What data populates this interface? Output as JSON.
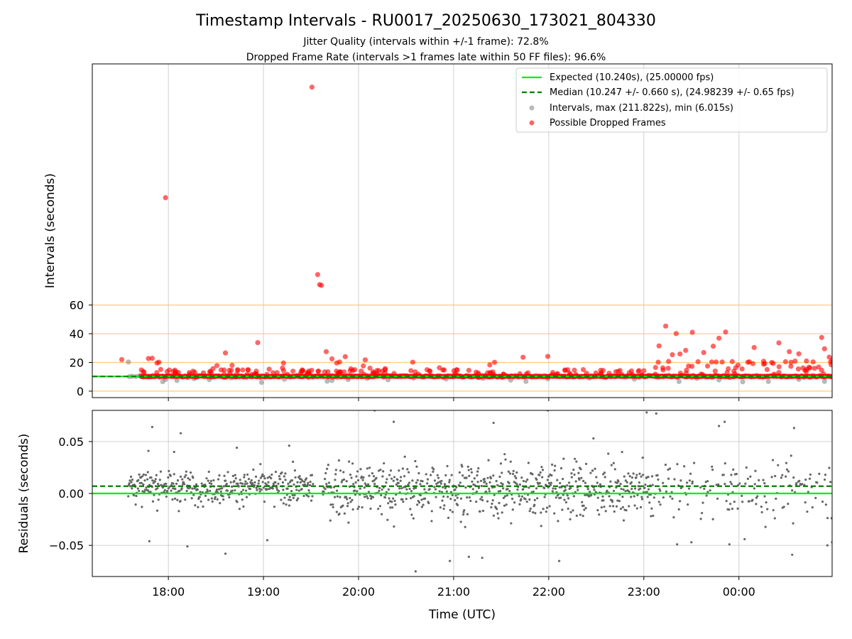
{
  "chart_data": [
    {
      "type": "scatter",
      "title": "Timestamp Intervals - RU0017_20250630_173021_804330",
      "subtitle_lines": [
        "Jitter Quality (intervals within +/-1 frame): 72.8%",
        "Dropped Frame Rate (intervals >1 frames late within 50 FF files): 96.6%"
      ],
      "xlabel": "",
      "ylabel": "Intervals (seconds)",
      "x_axis_hours": [
        17.2,
        24.98
      ],
      "ylim": [
        -4.5,
        228
      ],
      "yticks": [
        0,
        20,
        40,
        60
      ],
      "reference_lines": [
        0,
        20,
        40,
        60
      ],
      "grid": "vertical",
      "legend_position": "top-right",
      "legend": [
        {
          "label": "Expected (10.240s), (25.00000 fps)",
          "style": "solid-line",
          "color": "#00ee00"
        },
        {
          "label": "Median (10.247 +/- 0.660 s), (24.98239 +/- 0.65 fps)",
          "style": "dashed-line",
          "color": "#007f00"
        },
        {
          "label": "Intervals, max (211.822s), min (6.015s)",
          "style": "marker",
          "color": "#808080"
        },
        {
          "label": "Possible Dropped Frames",
          "style": "marker",
          "color": "#ff0000"
        }
      ],
      "expected_interval": 10.24,
      "median_interval": 10.247,
      "series": [
        {
          "name": "Intervals, max (211.822s), min (6.015s)",
          "color": "#808080",
          "points": [
            [
              17.58,
              20.3
            ],
            [
              17.59,
              10.1
            ],
            [
              17.62,
              10.4
            ],
            [
              17.66,
              10.2
            ],
            [
              17.7,
              10.8
            ],
            [
              17.8,
              9.8
            ],
            [
              17.94,
              6.6
            ],
            [
              17.97,
              8.1
            ],
            [
              18.09,
              7.4
            ],
            [
              18.27,
              8.7
            ],
            [
              18.43,
              8.0
            ],
            [
              18.66,
              9.2
            ],
            [
              18.98,
              6.1
            ],
            [
              19.22,
              8.3
            ],
            [
              19.67,
              6.9
            ],
            [
              19.72,
              7.4
            ],
            [
              19.78,
              9.6
            ],
            [
              19.89,
              8.1
            ],
            [
              20.09,
              8.9
            ],
            [
              20.31,
              7.9
            ],
            [
              20.58,
              9.1
            ],
            [
              20.92,
              8.5
            ],
            [
              21.31,
              8.9
            ],
            [
              21.6,
              7.7
            ],
            [
              21.76,
              6.8
            ],
            [
              21.99,
              8.6
            ],
            [
              22.43,
              9.1
            ],
            [
              22.9,
              8.4
            ],
            [
              23.15,
              9.6
            ],
            [
              23.37,
              6.7
            ],
            [
              23.56,
              8.9
            ],
            [
              23.79,
              7.8
            ],
            [
              24.04,
              6.5
            ],
            [
              24.31,
              6.7
            ],
            [
              24.63,
              8.2
            ],
            [
              24.9,
              6.8
            ]
          ]
        },
        {
          "name": "Possible Dropped Frames",
          "color": "#ff0000",
          "band_from_hours": 17.71,
          "band_to_hours": 24.98,
          "band_value": 10.3,
          "points": [
            [
              17.51,
              22.0
            ],
            [
              17.79,
              22.7
            ],
            [
              17.83,
              22.9
            ],
            [
              17.88,
              19.6
            ],
            [
              17.9,
              20.2
            ],
            [
              17.92,
              15.1
            ],
            [
              17.97,
              134.8
            ],
            [
              18.01,
              14.7
            ],
            [
              18.07,
              14.6
            ],
            [
              18.22,
              12.9
            ],
            [
              18.47,
              15.7
            ],
            [
              18.51,
              17.8
            ],
            [
              18.6,
              26.6
            ],
            [
              18.67,
              18.0
            ],
            [
              18.73,
              14.5
            ],
            [
              18.84,
              14.7
            ],
            [
              18.94,
              33.8
            ],
            [
              19.06,
              15.3
            ],
            [
              19.2,
              16.1
            ],
            [
              19.21,
              19.6
            ],
            [
              19.31,
              13.9
            ],
            [
              19.41,
              14.1
            ],
            [
              19.51,
              211.8
            ],
            [
              19.57,
              81.2
            ],
            [
              19.59,
              74.2
            ],
            [
              19.61,
              73.7
            ],
            [
              19.66,
              27.5
            ],
            [
              19.72,
              22.5
            ],
            [
              19.77,
              19.6
            ],
            [
              19.8,
              20.3
            ],
            [
              19.86,
              24.0
            ],
            [
              19.92,
              15.6
            ],
            [
              20.05,
              17.6
            ],
            [
              20.07,
              21.8
            ],
            [
              20.12,
              16.0
            ],
            [
              20.28,
              15.7
            ],
            [
              20.57,
              20.2
            ],
            [
              20.72,
              14.9
            ],
            [
              20.85,
              16.3
            ],
            [
              21.16,
              14.5
            ],
            [
              21.38,
              18.3
            ],
            [
              21.43,
              20.1
            ],
            [
              21.73,
              23.6
            ],
            [
              21.99,
              24.2
            ],
            [
              22.2,
              14.9
            ],
            [
              22.75,
              14.4
            ],
            [
              23.0,
              14.2
            ],
            [
              23.16,
              31.5
            ],
            [
              23.2,
              16.2
            ],
            [
              23.23,
              45.3
            ],
            [
              23.26,
              20.7
            ],
            [
              23.3,
              25.4
            ],
            [
              23.34,
              40.1
            ],
            [
              23.38,
              25.9
            ],
            [
              23.44,
              28.4
            ],
            [
              23.47,
              17.5
            ],
            [
              23.51,
              41.0
            ],
            [
              23.57,
              20.5
            ],
            [
              23.63,
              26.9
            ],
            [
              23.67,
              17.5
            ],
            [
              23.73,
              31.3
            ],
            [
              23.76,
              20.3
            ],
            [
              23.79,
              36.9
            ],
            [
              23.86,
              41.2
            ],
            [
              23.93,
              20.6
            ],
            [
              23.99,
              18.1
            ],
            [
              24.11,
              20.4
            ],
            [
              24.16,
              30.4
            ],
            [
              24.26,
              20.8
            ],
            [
              24.36,
              19.3
            ],
            [
              24.42,
              33.6
            ],
            [
              24.49,
              20.5
            ],
            [
              24.53,
              27.5
            ],
            [
              24.59,
              20.9
            ],
            [
              24.63,
              26.0
            ],
            [
              24.71,
              21.0
            ],
            [
              24.78,
              20.4
            ],
            [
              24.87,
              37.4
            ],
            [
              24.9,
              29.5
            ],
            [
              24.95,
              23.7
            ],
            [
              24.98,
              21.5
            ]
          ]
        }
      ]
    },
    {
      "type": "scatter",
      "xlabel": "Time (UTC)",
      "ylabel": "Residuals (seconds)",
      "xticks": [
        "18:00",
        "19:00",
        "20:00",
        "21:00",
        "22:00",
        "23:00",
        "00:00"
      ],
      "xtick_hours": [
        18,
        19,
        20,
        21,
        22,
        23,
        24
      ],
      "x_axis_hours": [
        17.2,
        24.98
      ],
      "ylim": [
        -0.08,
        0.08
      ],
      "yticks": [
        -0.05,
        0.0,
        0.05
      ],
      "ytick_labels": [
        "−0.05",
        "0.00",
        "0.05"
      ],
      "grid": "both",
      "expected_residual": 0.0,
      "median_residual": 0.007,
      "series": [
        {
          "name": "",
          "color": "#666666",
          "description_ranges": {
            "dense_gaps_hours": [
              [
                19.52,
                19.62
              ]
            ],
            "sparse_after_hours": 23.1
          },
          "outliers": [
            [
              17.79,
              0.041
            ],
            [
              17.83,
              0.064
            ],
            [
              17.8,
              -0.046
            ],
            [
              18.06,
              0.04
            ],
            [
              18.13,
              0.058
            ],
            [
              18.2,
              -0.051
            ],
            [
              18.6,
              -0.058
            ],
            [
              18.72,
              0.044
            ],
            [
              19.04,
              -0.045
            ],
            [
              19.27,
              0.046
            ],
            [
              20.17,
              0.08
            ],
            [
              20.37,
              0.069
            ],
            [
              20.6,
              -0.075
            ],
            [
              20.96,
              -0.065
            ],
            [
              21.16,
              -0.061
            ],
            [
              21.3,
              -0.062
            ],
            [
              21.42,
              0.068
            ],
            [
              21.99,
              0.08
            ],
            [
              22.11,
              -0.065
            ],
            [
              22.47,
              0.053
            ],
            [
              23.03,
              0.078
            ],
            [
              23.13,
              0.077
            ],
            [
              23.35,
              -0.049
            ],
            [
              23.5,
              -0.047
            ],
            [
              23.79,
              0.065
            ],
            [
              23.85,
              0.069
            ],
            [
              23.9,
              -0.049
            ],
            [
              24.06,
              -0.044
            ],
            [
              24.58,
              0.063
            ],
            [
              24.56,
              -0.059
            ],
            [
              24.93,
              -0.05
            ],
            [
              24.98,
              -0.047
            ]
          ]
        }
      ]
    }
  ]
}
